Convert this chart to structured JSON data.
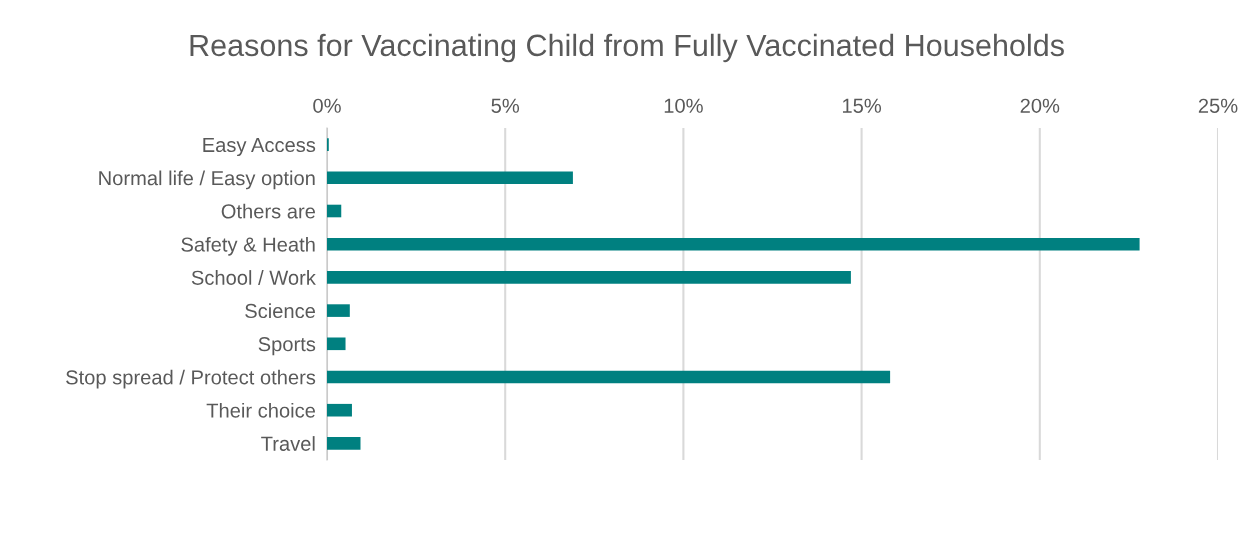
{
  "chart_data": {
    "type": "bar",
    "orientation": "horizontal",
    "title": "Reasons for Vaccinating Child from Fully Vaccinated Households",
    "categories": [
      "Easy Access",
      "Normal life / Easy option",
      "Others are",
      "Safety & Heath",
      "School / Work",
      "Science",
      "Sports",
      "Stop spread / Protect others",
      "Their choice",
      "Travel"
    ],
    "values": [
      0.05,
      6.9,
      0.4,
      22.8,
      14.7,
      0.64,
      0.52,
      15.8,
      0.7,
      0.94
    ],
    "color": "#008080",
    "xlim": [
      0,
      25
    ],
    "xticks": [
      {
        "value": 0,
        "label": "0%"
      },
      {
        "value": 5,
        "label": "5%"
      },
      {
        "value": 10,
        "label": "10%"
      },
      {
        "value": 15,
        "label": "15%"
      },
      {
        "value": 20,
        "label": "20%"
      },
      {
        "value": 25,
        "label": "25%"
      }
    ],
    "grid": "x"
  }
}
